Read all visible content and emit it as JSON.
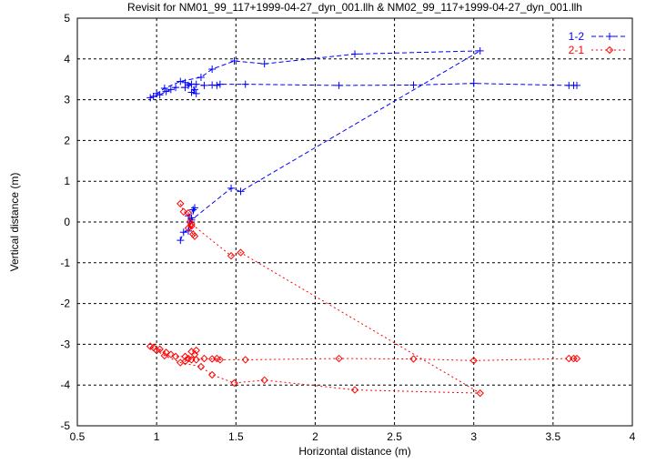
{
  "chart_data": {
    "type": "line",
    "title": "Revisit for NM01_99_117+1999-04-27_dyn_001.llh & NM02_99_117+1999-04-27_dyn_001.llh",
    "xlabel": "Horizontal distance (m)",
    "ylabel": "Vertical distance (m)",
    "xlim": [
      0.5,
      4
    ],
    "ylim": [
      -5,
      5
    ],
    "xticks": [
      "0.5",
      "1",
      "1.5",
      "2",
      "2.5",
      "3",
      "3.5",
      "4"
    ],
    "yticks": [
      "5",
      "4",
      "3",
      "2",
      "1",
      "0",
      "-1",
      "-2",
      "-3",
      "-4",
      "-5"
    ],
    "grid": true,
    "legend_position": "top-right",
    "series": [
      {
        "name": "1-2",
        "color": "#0000ff",
        "marker": "plus",
        "points": [
          [
            1.15,
            -0.45
          ],
          [
            1.17,
            -0.25
          ],
          [
            1.2,
            -0.22
          ],
          [
            1.21,
            0.0
          ],
          [
            1.22,
            0.1
          ],
          [
            1.2,
            0.15
          ],
          [
            1.23,
            0.3
          ],
          [
            1.24,
            0.35
          ],
          [
            1.22,
            0.05
          ],
          [
            1.47,
            0.83
          ],
          [
            1.53,
            0.75
          ],
          [
            3.04,
            4.2
          ],
          [
            2.25,
            4.12
          ],
          [
            1.68,
            3.88
          ],
          [
            1.49,
            3.95
          ],
          [
            1.35,
            3.75
          ],
          [
            1.28,
            3.55
          ],
          [
            1.15,
            3.45
          ],
          [
            1.05,
            3.28
          ],
          [
            1.0,
            3.15
          ],
          [
            0.96,
            3.05
          ],
          [
            0.98,
            3.08
          ],
          [
            1.02,
            3.12
          ],
          [
            1.06,
            3.2
          ],
          [
            1.09,
            3.25
          ],
          [
            1.12,
            3.3
          ],
          [
            1.18,
            3.3
          ],
          [
            1.2,
            3.35
          ],
          [
            1.22,
            3.38
          ],
          [
            1.24,
            3.25
          ],
          [
            1.22,
            3.18
          ],
          [
            1.25,
            3.15
          ],
          [
            1.18,
            3.42
          ],
          [
            1.25,
            3.38
          ],
          [
            1.3,
            3.35
          ],
          [
            1.35,
            3.36
          ],
          [
            1.38,
            3.35
          ],
          [
            1.4,
            3.38
          ],
          [
            1.56,
            3.38
          ],
          [
            2.15,
            3.35
          ],
          [
            2.62,
            3.36
          ],
          [
            3.0,
            3.4
          ],
          [
            3.6,
            3.35
          ],
          [
            3.63,
            3.35
          ],
          [
            3.65,
            3.35
          ]
        ]
      },
      {
        "name": "2-1",
        "color": "#ff0000",
        "marker": "diamond",
        "points": [
          [
            1.15,
            0.45
          ],
          [
            1.17,
            0.25
          ],
          [
            1.2,
            0.22
          ],
          [
            1.21,
            0.0
          ],
          [
            1.22,
            -0.1
          ],
          [
            1.2,
            -0.15
          ],
          [
            1.23,
            -0.3
          ],
          [
            1.24,
            -0.35
          ],
          [
            1.22,
            -0.05
          ],
          [
            1.47,
            -0.83
          ],
          [
            1.53,
            -0.75
          ],
          [
            3.04,
            -4.2
          ],
          [
            2.25,
            -4.12
          ],
          [
            1.68,
            -3.88
          ],
          [
            1.49,
            -3.95
          ],
          [
            1.35,
            -3.75
          ],
          [
            1.28,
            -3.55
          ],
          [
            1.15,
            -3.45
          ],
          [
            1.05,
            -3.28
          ],
          [
            1.0,
            -3.15
          ],
          [
            0.96,
            -3.05
          ],
          [
            0.98,
            -3.08
          ],
          [
            1.02,
            -3.12
          ],
          [
            1.06,
            -3.2
          ],
          [
            1.09,
            -3.25
          ],
          [
            1.12,
            -3.3
          ],
          [
            1.18,
            -3.3
          ],
          [
            1.2,
            -3.35
          ],
          [
            1.22,
            -3.38
          ],
          [
            1.24,
            -3.25
          ],
          [
            1.22,
            -3.18
          ],
          [
            1.25,
            -3.15
          ],
          [
            1.18,
            -3.42
          ],
          [
            1.25,
            -3.38
          ],
          [
            1.3,
            -3.35
          ],
          [
            1.35,
            -3.36
          ],
          [
            1.38,
            -3.35
          ],
          [
            1.4,
            -3.38
          ],
          [
            1.56,
            -3.38
          ],
          [
            2.15,
            -3.35
          ],
          [
            2.62,
            -3.36
          ],
          [
            3.0,
            -3.4
          ],
          [
            3.6,
            -3.35
          ],
          [
            3.63,
            -3.35
          ],
          [
            3.65,
            -3.35
          ]
        ]
      }
    ]
  }
}
